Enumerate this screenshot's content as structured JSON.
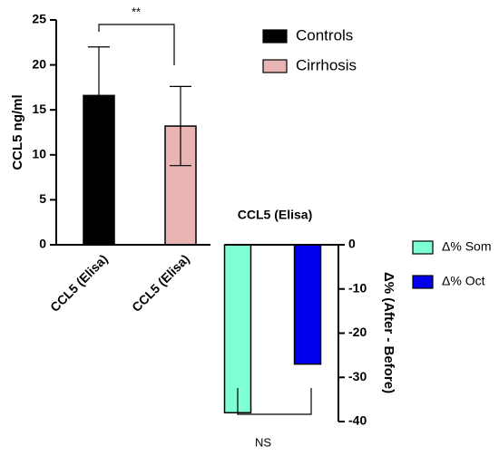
{
  "chart_data": [
    {
      "type": "bar",
      "ylabel": "CCL5 ng/ml",
      "categories": [
        "CCL5 (Elisa)",
        "CCL5 (Elisa)"
      ],
      "series": [
        {
          "name": "Controls",
          "color": "#000000",
          "values": [
            16.6,
            null
          ],
          "errors": [
            5.4,
            null
          ]
        },
        {
          "name": "Cirrhosis",
          "color": "#e8b4b4",
          "values": [
            null,
            13.2
          ],
          "errors": [
            null,
            4.4
          ]
        }
      ],
      "ylim": [
        0,
        25
      ],
      "yticks": [
        0,
        5,
        10,
        15,
        20,
        25
      ],
      "annotations": [
        {
          "text": "**"
        }
      ]
    },
    {
      "type": "bar",
      "title": "CCL5 (Elisa)",
      "ylabel": "Δ% (After - Before)",
      "categories": [
        null,
        null
      ],
      "series": [
        {
          "name": "Δ% Som",
          "color": "#7fffd4",
          "values": [
            -38,
            null
          ]
        },
        {
          "name": "Δ% Oct",
          "color": "#0000ee",
          "values": [
            null,
            -27
          ]
        }
      ],
      "ylim": [
        -40,
        0
      ],
      "yticks": [
        -40,
        -30,
        -20,
        -10,
        0
      ],
      "annotations": [
        {
          "text": "NS"
        }
      ]
    }
  ]
}
